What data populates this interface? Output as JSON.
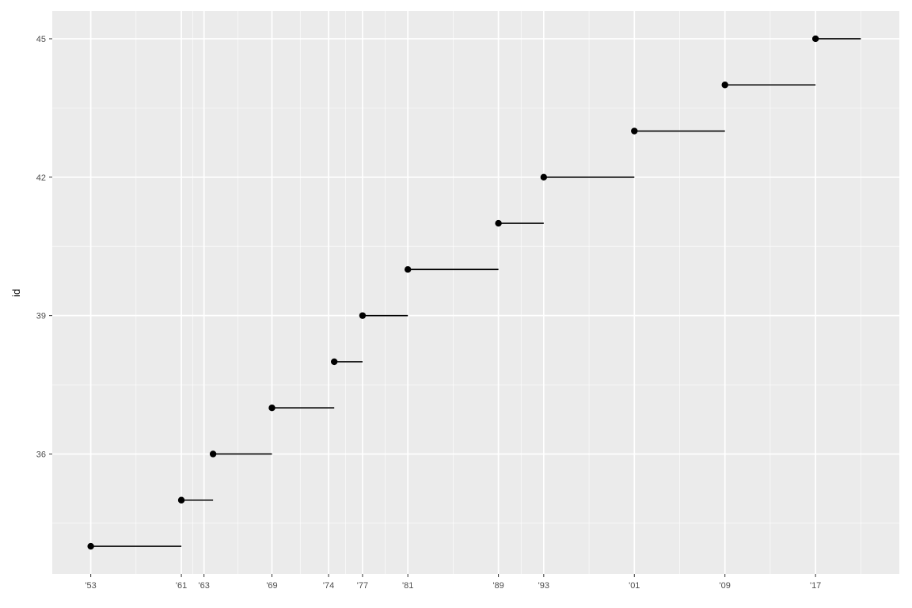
{
  "chart_data": {
    "type": "scatter",
    "title": "",
    "xlabel": "",
    "ylabel": "id",
    "x_ticks": [
      {
        "value": 1953,
        "label": "'53"
      },
      {
        "value": 1961,
        "label": "'61"
      },
      {
        "value": 1963,
        "label": "'63"
      },
      {
        "value": 1969,
        "label": "'69"
      },
      {
        "value": 1974,
        "label": "'74"
      },
      {
        "value": 1977,
        "label": "'77"
      },
      {
        "value": 1981,
        "label": "'81"
      },
      {
        "value": 1989,
        "label": "'89"
      },
      {
        "value": 1993,
        "label": "'93"
      },
      {
        "value": 2001,
        "label": "'01"
      },
      {
        "value": 2009,
        "label": "'09"
      },
      {
        "value": 2017,
        "label": "'17"
      }
    ],
    "y_ticks": [
      {
        "value": 36,
        "label": "36"
      },
      {
        "value": 39,
        "label": "39"
      },
      {
        "value": 42,
        "label": "42"
      },
      {
        "value": 45,
        "label": "45"
      }
    ],
    "xlim": [
      1949.6,
      2024.4
    ],
    "ylim": [
      33.4,
      45.6
    ],
    "grid": true,
    "segments": [
      {
        "id": 34,
        "start": 1953,
        "end": 1961
      },
      {
        "id": 35,
        "start": 1961,
        "end": 1963.8
      },
      {
        "id": 36,
        "start": 1963.8,
        "end": 1969
      },
      {
        "id": 37,
        "start": 1969,
        "end": 1974.5
      },
      {
        "id": 38,
        "start": 1974.5,
        "end": 1977
      },
      {
        "id": 39,
        "start": 1977,
        "end": 1981
      },
      {
        "id": 40,
        "start": 1981,
        "end": 1989
      },
      {
        "id": 41,
        "start": 1989,
        "end": 1993
      },
      {
        "id": 42,
        "start": 1993,
        "end": 2001
      },
      {
        "id": 43,
        "start": 2001,
        "end": 2009
      },
      {
        "id": 44,
        "start": 2009,
        "end": 2017
      },
      {
        "id": 45,
        "start": 2017,
        "end": 2021
      }
    ],
    "colors": {
      "panel": "#ebebeb",
      "grid": "#ffffff",
      "mark": "#000000"
    }
  }
}
